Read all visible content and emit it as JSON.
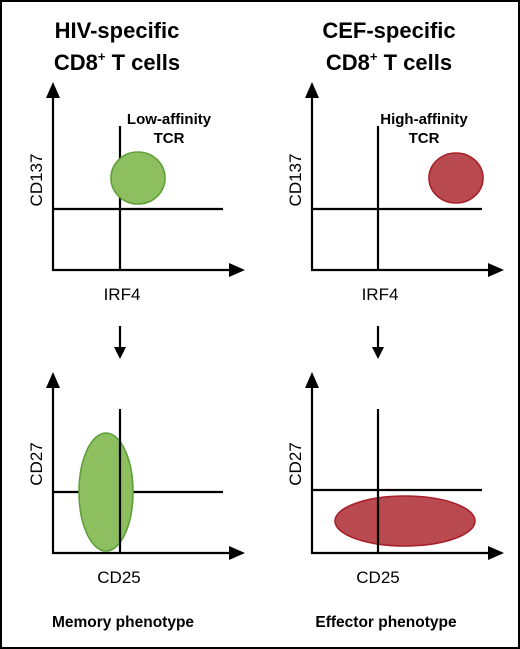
{
  "columns": [
    {
      "title_line1": "HIV-specific",
      "title_line2_pre": "CD8",
      "title_line2_sup": "+",
      "title_line2_post": " T cells",
      "top_plot": {
        "y_label": "CD137",
        "x_label": "IRF4",
        "annotation_line1": "Low-affinity",
        "annotation_line2": "TCR",
        "population_color": "#8dbf60",
        "population_border": "#5fa03a"
      },
      "bottom_plot": {
        "y_label": "CD27",
        "x_label": "CD25",
        "population_color": "#8dbf60",
        "population_border": "#5fa03a"
      },
      "phenotype": "Memory phenotype"
    },
    {
      "title_line1": "CEF-specific",
      "title_line2_pre": "CD8",
      "title_line2_sup": "+",
      "title_line2_post": " T cells",
      "top_plot": {
        "y_label": "CD137",
        "x_label": "IRF4",
        "annotation_line1": "High-affinity",
        "annotation_line2": "TCR",
        "population_color": "#b84a50",
        "population_border": "#a8202a"
      },
      "bottom_plot": {
        "y_label": "CD27",
        "x_label": "CD25",
        "population_color": "#b84a50",
        "population_border": "#a8202a"
      },
      "phenotype": "Effector phenotype"
    }
  ]
}
